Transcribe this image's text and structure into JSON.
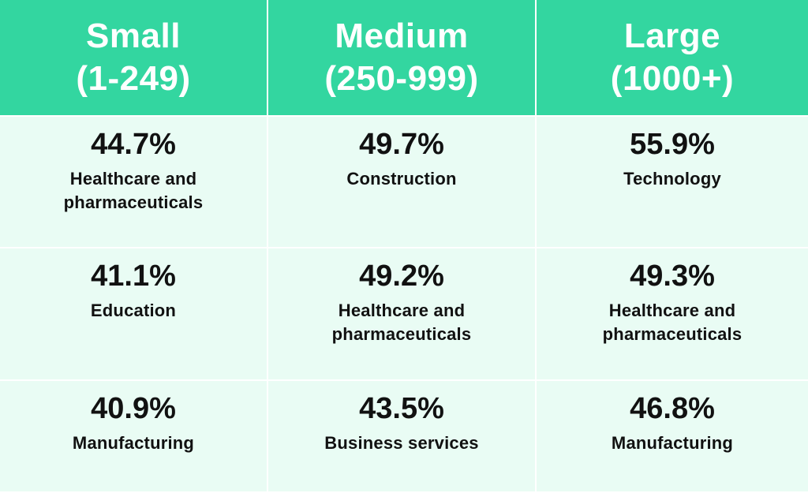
{
  "chart_data": {
    "type": "table",
    "columns": [
      {
        "line1": "Small",
        "line2": "(1-249)"
      },
      {
        "line1": "Medium",
        "line2": "(250-999)"
      },
      {
        "line1": "Large",
        "line2": "(1000+)"
      }
    ],
    "rows": [
      [
        {
          "value": "44.7%",
          "industry": "Healthcare and pharmaceuticals"
        },
        {
          "value": "49.7%",
          "industry": "Construction"
        },
        {
          "value": "55.9%",
          "industry": "Technology"
        }
      ],
      [
        {
          "value": "41.1%",
          "industry": "Education"
        },
        {
          "value": "49.2%",
          "industry": "Healthcare and pharmaceuticals"
        },
        {
          "value": "49.3%",
          "industry": "Healthcare and pharmaceuticals"
        }
      ],
      [
        {
          "value": "40.9%",
          "industry": "Manufacturing"
        },
        {
          "value": "43.5%",
          "industry": "Business services"
        },
        {
          "value": "46.8%",
          "industry": "Manufacturing"
        }
      ]
    ]
  },
  "colors": {
    "header_bg": "#33d6a0",
    "header_text": "#ffffff",
    "cell_bg": "#e9fcf4",
    "cell_text": "#111111"
  }
}
